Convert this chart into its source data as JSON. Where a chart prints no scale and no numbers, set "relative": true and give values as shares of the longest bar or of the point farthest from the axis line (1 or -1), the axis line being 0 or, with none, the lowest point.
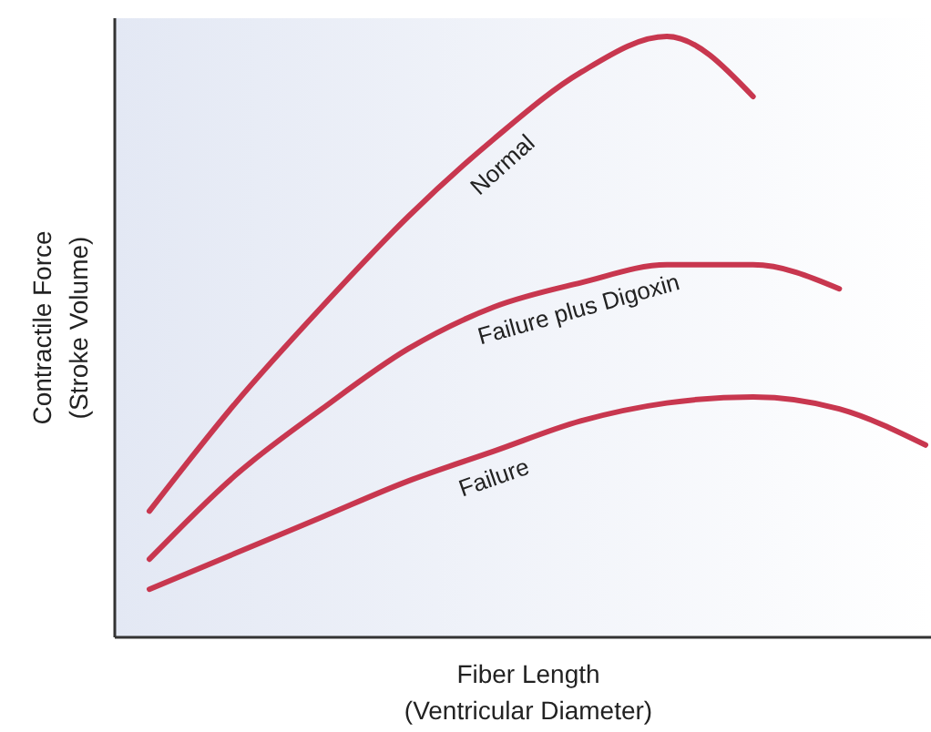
{
  "chart_data": {
    "type": "line",
    "relative": true,
    "xlabel": "Fiber Length\n(Ventricular Diameter)",
    "ylabel": "Contractile Force\n(Stroke Volume)",
    "categories": [
      null,
      null,
      null,
      null,
      null,
      null,
      null,
      null,
      null,
      null
    ],
    "line_style": "solid",
    "series": [
      {
        "name": "Normal",
        "color": "#c8374f",
        "values": [
          0.21,
          0.39,
          0.55,
          0.7,
          0.83,
          0.94,
          1,
          0.9,
          null,
          null
        ]
      },
      {
        "name": "Failure plus Digoxin",
        "color": "#c8374f",
        "values": [
          0.13,
          0.27,
          0.38,
          0.48,
          0.55,
          0.59,
          0.62,
          0.62,
          0.58,
          null
        ]
      },
      {
        "name": "Failure",
        "color": "#c8374f",
        "values": [
          0.08,
          0.14,
          0.2,
          0.26,
          0.31,
          0.36,
          0.39,
          0.4,
          0.38,
          0.32
        ]
      }
    ]
  }
}
